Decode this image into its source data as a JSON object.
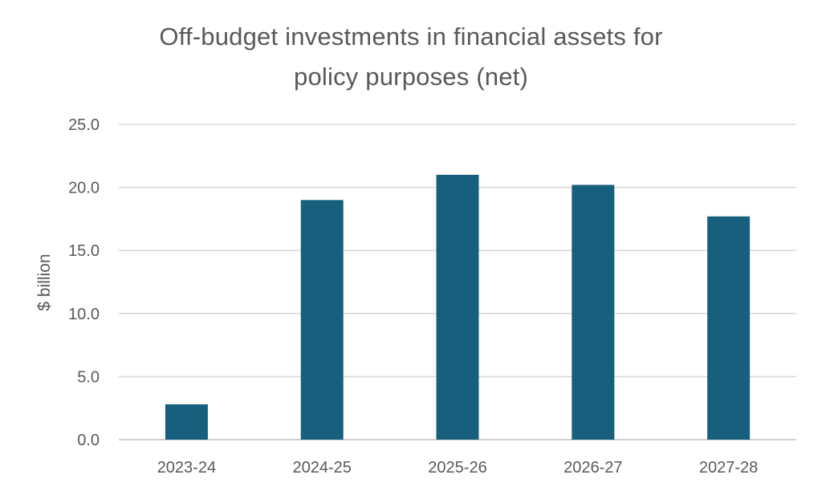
{
  "chart_data": {
    "type": "bar",
    "title_lines": [
      "Off-budget investments in financial assets for",
      "policy purposes (net)"
    ],
    "xlabel": "",
    "ylabel": "$ billion",
    "categories": [
      "2023-24",
      "2024-25",
      "2025-26",
      "2026-27",
      "2027-28"
    ],
    "values": [
      2.8,
      19.0,
      21.0,
      20.2,
      17.7
    ],
    "ylim": [
      0,
      25
    ],
    "yticks": [
      "0.0",
      "5.0",
      "10.0",
      "15.0",
      "20.0",
      "25.0"
    ],
    "grid": true,
    "legend": "none",
    "bar_color": "#175f7d"
  }
}
